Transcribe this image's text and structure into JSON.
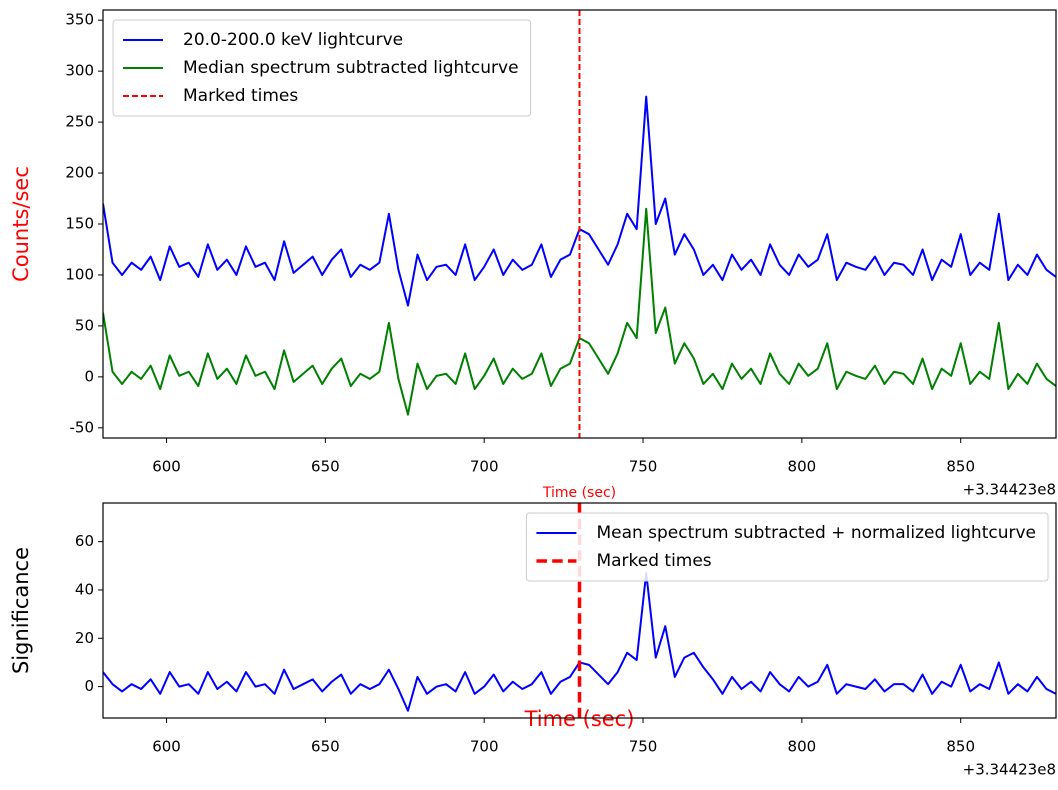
{
  "chart_data": [
    {
      "type": "line",
      "xlabel": "Time (sec)",
      "xlabel_color": "#ff0000",
      "ylabel": "Counts/sec",
      "ylabel_color": "#ff0000",
      "offset_text": "+3.34423e8",
      "x": [
        580,
        583,
        586,
        589,
        592,
        595,
        598,
        601,
        604,
        607,
        610,
        613,
        616,
        619,
        622,
        625,
        628,
        631,
        634,
        637,
        640,
        643,
        646,
        649,
        652,
        655,
        658,
        661,
        664,
        667,
        670,
        673,
        676,
        679,
        682,
        685,
        688,
        691,
        694,
        697,
        700,
        703,
        706,
        709,
        712,
        715,
        718,
        721,
        724,
        727,
        730,
        733,
        736,
        739,
        742,
        745,
        748,
        751,
        754,
        757,
        760,
        763,
        766,
        769,
        772,
        775,
        778,
        781,
        784,
        787,
        790,
        793,
        796,
        799,
        802,
        805,
        808,
        811,
        814,
        817,
        820,
        823,
        826,
        829,
        832,
        835,
        838,
        841,
        844,
        847,
        850,
        853,
        856,
        859,
        862,
        865,
        868,
        871,
        874,
        877,
        880
      ],
      "xlim": [
        580,
        880
      ],
      "xticks": [
        600,
        650,
        700,
        750,
        800,
        850
      ],
      "ylim": [
        -60,
        360
      ],
      "yticks": [
        -50,
        0,
        50,
        100,
        150,
        200,
        250,
        300,
        350
      ],
      "legend": "upper left",
      "series": [
        {
          "name": "20.0-200.0 keV lightcurve",
          "color": "#0000ff",
          "values": [
            170,
            112,
            100,
            112,
            105,
            118,
            95,
            128,
            108,
            112,
            98,
            130,
            105,
            115,
            100,
            128,
            108,
            112,
            95,
            133,
            102,
            110,
            118,
            100,
            115,
            125,
            98,
            110,
            105,
            112,
            160,
            105,
            70,
            120,
            95,
            108,
            110,
            100,
            130,
            95,
            108,
            125,
            100,
            115,
            105,
            110,
            130,
            98,
            115,
            120,
            145,
            140,
            125,
            110,
            130,
            160,
            145,
            275,
            150,
            175,
            120,
            140,
            125,
            100,
            110,
            95,
            120,
            105,
            115,
            100,
            130,
            110,
            100,
            120,
            108,
            115,
            140,
            95,
            112,
            108,
            105,
            118,
            100,
            112,
            110,
            100,
            125,
            95,
            115,
            108,
            140,
            100,
            112,
            105,
            160,
            95,
            110,
            100,
            120,
            105,
            98
          ]
        },
        {
          "name": "Median spectrum subtracted lightcurve",
          "color": "#008000",
          "values": [
            63,
            5,
            -7,
            5,
            -2,
            11,
            -12,
            21,
            1,
            5,
            -9,
            23,
            -2,
            8,
            -7,
            21,
            1,
            5,
            -12,
            26,
            -5,
            3,
            11,
            -7,
            8,
            18,
            -9,
            3,
            -2,
            5,
            53,
            -2,
            -37,
            13,
            -12,
            1,
            3,
            -7,
            23,
            -12,
            1,
            18,
            -7,
            8,
            -2,
            3,
            23,
            -9,
            8,
            13,
            38,
            33,
            18,
            3,
            23,
            53,
            38,
            165,
            43,
            68,
            13,
            33,
            18,
            -7,
            3,
            -12,
            13,
            -2,
            8,
            -7,
            23,
            3,
            -7,
            13,
            1,
            8,
            33,
            -12,
            5,
            1,
            -2,
            11,
            -7,
            5,
            3,
            -7,
            18,
            -12,
            8,
            1,
            33,
            -7,
            5,
            -2,
            53,
            -12,
            3,
            -7,
            13,
            -2,
            -9
          ]
        }
      ],
      "vlines": [
        {
          "name": "Marked times",
          "color": "#ff0000",
          "x": 730,
          "linestyle": "dashed"
        }
      ]
    },
    {
      "type": "line",
      "xlabel": "Time (sec)",
      "xlabel_color": "#ff0000",
      "ylabel": "Significance",
      "ylabel_color": "#000000",
      "offset_text": "+3.34423e8",
      "x": [
        580,
        583,
        586,
        589,
        592,
        595,
        598,
        601,
        604,
        607,
        610,
        613,
        616,
        619,
        622,
        625,
        628,
        631,
        634,
        637,
        640,
        643,
        646,
        649,
        652,
        655,
        658,
        661,
        664,
        667,
        670,
        673,
        676,
        679,
        682,
        685,
        688,
        691,
        694,
        697,
        700,
        703,
        706,
        709,
        712,
        715,
        718,
        721,
        724,
        727,
        730,
        733,
        736,
        739,
        742,
        745,
        748,
        751,
        754,
        757,
        760,
        763,
        766,
        769,
        772,
        775,
        778,
        781,
        784,
        787,
        790,
        793,
        796,
        799,
        802,
        805,
        808,
        811,
        814,
        817,
        820,
        823,
        826,
        829,
        832,
        835,
        838,
        841,
        844,
        847,
        850,
        853,
        856,
        859,
        862,
        865,
        868,
        871,
        874,
        877,
        880
      ],
      "xlim": [
        580,
        880
      ],
      "xticks": [
        600,
        650,
        700,
        750,
        800,
        850
      ],
      "ylim": [
        -13,
        76
      ],
      "yticks": [
        0,
        20,
        40,
        60
      ],
      "legend": "upper right",
      "series": [
        {
          "name": "Mean spectrum subtracted + normalized lightcurve",
          "color": "#0000ff",
          "values": [
            6,
            1,
            -2,
            1,
            -1,
            3,
            -3,
            6,
            0,
            1,
            -3,
            6,
            -1,
            2,
            -2,
            6,
            0,
            1,
            -3,
            7,
            -1,
            1,
            3,
            -2,
            2,
            5,
            -3,
            1,
            -1,
            1,
            7,
            -1,
            -10,
            4,
            -3,
            0,
            1,
            -2,
            6,
            -3,
            0,
            5,
            -2,
            2,
            -1,
            1,
            6,
            -3,
            2,
            4,
            10,
            9,
            5,
            1,
            6,
            14,
            11,
            47,
            12,
            25,
            4,
            12,
            14,
            8,
            3,
            -3,
            4,
            -1,
            2,
            -2,
            6,
            1,
            -2,
            4,
            0,
            2,
            9,
            -3,
            1,
            0,
            -1,
            3,
            -2,
            1,
            1,
            -2,
            5,
            -3,
            2,
            0,
            9,
            -2,
            1,
            -1,
            10,
            -3,
            1,
            -2,
            4,
            -1,
            -3
          ]
        }
      ],
      "vlines": [
        {
          "name": "Marked times",
          "color": "#ff0000",
          "x": 730,
          "linestyle": "dashed"
        }
      ]
    }
  ]
}
